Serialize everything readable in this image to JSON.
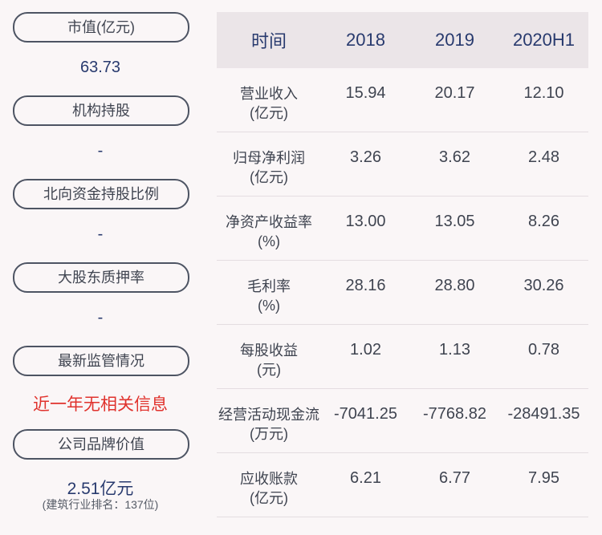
{
  "left_panel": {
    "market_cap_label": "市值(亿元)",
    "market_cap_value": "63.73",
    "institution_label": "机构持股",
    "institution_value": "-",
    "northbound_label": "北向资金持股比例",
    "northbound_value": "-",
    "pledge_label": "大股东质押率",
    "pledge_value": "-",
    "regulation_label": "最新监管情况",
    "regulation_value": "近一年无相关信息",
    "brand_label": "公司品牌价值",
    "brand_value": "2.51亿元",
    "brand_rank": "(建筑行业排名：137位)"
  },
  "table": {
    "headers": [
      "时间",
      "2018",
      "2019",
      "2020H1"
    ],
    "rows": [
      {
        "metric": "营业收入",
        "unit": "(亿元)",
        "values": [
          "15.94",
          "20.17",
          "12.10"
        ]
      },
      {
        "metric": "归母净利润",
        "unit": "(亿元)",
        "values": [
          "3.26",
          "3.62",
          "2.48"
        ]
      },
      {
        "metric": "净资产收益率",
        "unit": "(%)",
        "values": [
          "13.00",
          "13.05",
          "8.26"
        ]
      },
      {
        "metric": "毛利率",
        "unit": "(%)",
        "values": [
          "28.16",
          "28.80",
          "30.26"
        ]
      },
      {
        "metric": "每股收益",
        "unit": "(元)",
        "values": [
          "1.02",
          "1.13",
          "0.78"
        ]
      },
      {
        "metric": "经营活动现金流",
        "unit": "(万元)",
        "values": [
          "-7041.25",
          "-7768.82",
          "-28491.35"
        ]
      },
      {
        "metric": "应收账款",
        "unit": "(亿元)",
        "values": [
          "6.21",
          "6.77",
          "7.95"
        ]
      }
    ]
  }
}
